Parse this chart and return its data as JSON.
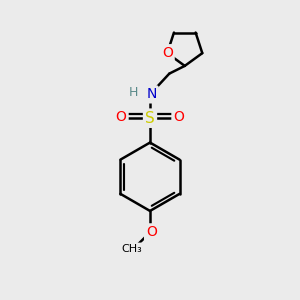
{
  "background_color": "#ebebeb",
  "bond_color": "#000000",
  "bond_width": 1.8,
  "atom_colors": {
    "O": "#ff0000",
    "N": "#0000cc",
    "S": "#cccc00",
    "H": "#5a8a8a",
    "C": "#000000"
  },
  "font_size_atoms": 10,
  "font_size_H": 9
}
